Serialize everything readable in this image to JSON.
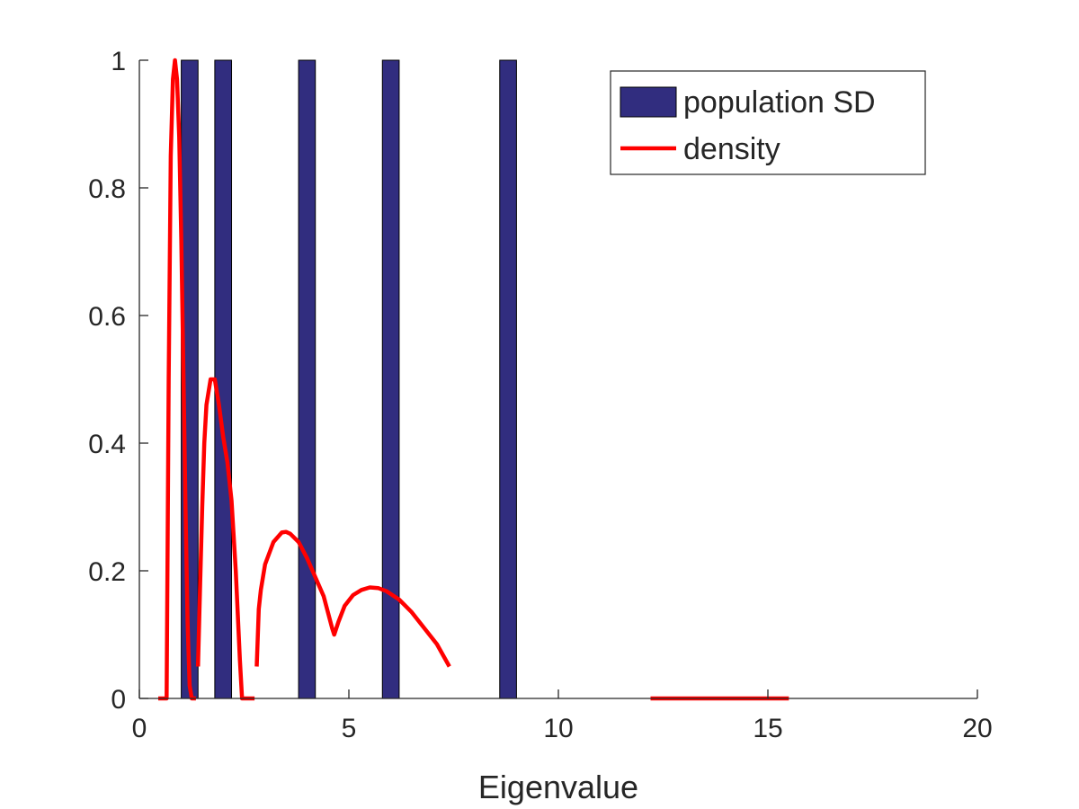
{
  "chart_data": {
    "type": "bar",
    "title": "",
    "xlabel": "Eigenvalue",
    "ylabel": "",
    "xlim": [
      0,
      20
    ],
    "ylim": [
      0,
      1
    ],
    "xticks": [
      0,
      5,
      10,
      15,
      20
    ],
    "xtick_labels": [
      "0",
      "5",
      "10",
      "15",
      "20"
    ],
    "yticks": [
      0,
      0.2,
      0.4,
      0.6,
      0.8,
      1
    ],
    "ytick_labels": [
      "0",
      "0.2",
      "0.4",
      "0.6",
      "0.8",
      "1"
    ],
    "grid": false,
    "legend_position": "top-right",
    "series": [
      {
        "name": "population SD",
        "type": "bar",
        "color": "#312d7f",
        "bar_width": 0.4,
        "x": [
          1.2,
          2.0,
          4.0,
          6.0,
          8.8
        ],
        "values": [
          1,
          1,
          1,
          1,
          1
        ]
      },
      {
        "name": "density",
        "type": "line",
        "color": "#ff0000",
        "segments": [
          [
            [
              0.45,
              0
            ],
            [
              0.65,
              0
            ],
            [
              0.7,
              0.5
            ],
            [
              0.75,
              0.85
            ],
            [
              0.8,
              0.97
            ],
            [
              0.85,
              1.0
            ],
            [
              0.9,
              0.97
            ],
            [
              0.95,
              0.88
            ],
            [
              1.0,
              0.72
            ],
            [
              1.05,
              0.52
            ],
            [
              1.1,
              0.3
            ],
            [
              1.15,
              0.12
            ],
            [
              1.2,
              0.02
            ],
            [
              1.25,
              0
            ],
            [
              1.35,
              0
            ]
          ],
          [
            [
              1.4,
              0.05
            ],
            [
              1.45,
              0.18
            ],
            [
              1.5,
              0.3
            ],
            [
              1.55,
              0.4
            ],
            [
              1.6,
              0.46
            ],
            [
              1.7,
              0.5
            ],
            [
              1.75,
              0.5
            ],
            [
              1.8,
              0.5
            ],
            [
              1.9,
              0.46
            ],
            [
              2.0,
              0.41
            ],
            [
              2.1,
              0.37
            ],
            [
              2.2,
              0.31
            ],
            [
              2.3,
              0.2
            ],
            [
              2.4,
              0.06
            ],
            [
              2.45,
              0
            ],
            [
              2.75,
              0
            ]
          ],
          [
            [
              2.8,
              0.05
            ],
            [
              2.85,
              0.14
            ],
            [
              2.9,
              0.17
            ],
            [
              3.0,
              0.21
            ],
            [
              3.2,
              0.245
            ],
            [
              3.4,
              0.26
            ],
            [
              3.5,
              0.261
            ],
            [
              3.6,
              0.258
            ],
            [
              3.8,
              0.245
            ],
            [
              4.0,
              0.22
            ],
            [
              4.2,
              0.19
            ],
            [
              4.4,
              0.16
            ],
            [
              4.6,
              0.11
            ],
            [
              4.65,
              0.1
            ],
            [
              4.75,
              0.12
            ],
            [
              4.9,
              0.145
            ],
            [
              5.1,
              0.162
            ],
            [
              5.3,
              0.17
            ],
            [
              5.5,
              0.174
            ],
            [
              5.7,
              0.173
            ],
            [
              5.9,
              0.168
            ],
            [
              6.2,
              0.155
            ],
            [
              6.5,
              0.135
            ],
            [
              6.8,
              0.11
            ],
            [
              7.1,
              0.085
            ],
            [
              7.4,
              0.05
            ]
          ],
          [
            [
              12.2,
              0
            ],
            [
              15.5,
              0
            ]
          ]
        ]
      }
    ]
  }
}
